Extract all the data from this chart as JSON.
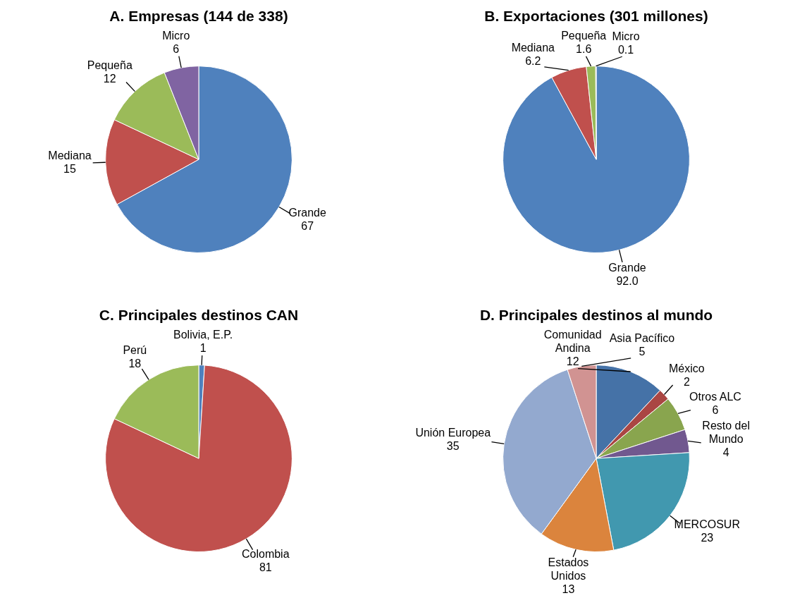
{
  "chart_data": [
    {
      "type": "pie",
      "title": "A. Empresas (144 de 338)",
      "categories": [
        "Grande",
        "Mediana",
        "Pequeña",
        "Micro"
      ],
      "values": [
        67,
        15,
        12,
        6
      ],
      "colors": [
        "#4f81bd",
        "#c0504d",
        "#9bbb59",
        "#8064a2"
      ],
      "data_labels": true,
      "legend": false
    },
    {
      "type": "pie",
      "title": "B. Exportaciones (301 millones)",
      "categories": [
        "Grande",
        "Mediana",
        "Pequeña",
        "Micro"
      ],
      "values": [
        92.0,
        6.2,
        1.6,
        0.1
      ],
      "value_labels": [
        "92.0",
        "6.2",
        "1.6",
        "0.1"
      ],
      "colors": [
        "#4f81bd",
        "#c0504d",
        "#9bbb59",
        "#8064a2"
      ],
      "legend": false
    },
    {
      "type": "pie",
      "title": "C. Principales destinos CAN",
      "categories": [
        "Bolivia, E.P.",
        "Colombia",
        "Perú"
      ],
      "values": [
        1,
        81,
        18
      ],
      "colors": [
        "#4f81bd",
        "#c0504d",
        "#9bbb59"
      ],
      "data_labels": true,
      "legend": false
    },
    {
      "type": "pie",
      "title": "D. Principales destinos al mundo",
      "categories": [
        "Comunidad Andina",
        "México",
        "Otros ALC",
        "Resto del Mundo",
        "MERCOSUR",
        "Estados Unidos",
        "Unión Europea",
        "Asia Pacífico"
      ],
      "values": [
        12,
        2,
        6,
        4,
        23,
        13,
        35,
        5
      ],
      "colors": [
        "#4572a7",
        "#aa4643",
        "#89a54e",
        "#71588f",
        "#4198af",
        "#db843d",
        "#93a9cf",
        "#d19392"
      ],
      "data_labels": true,
      "legend": false
    }
  ]
}
